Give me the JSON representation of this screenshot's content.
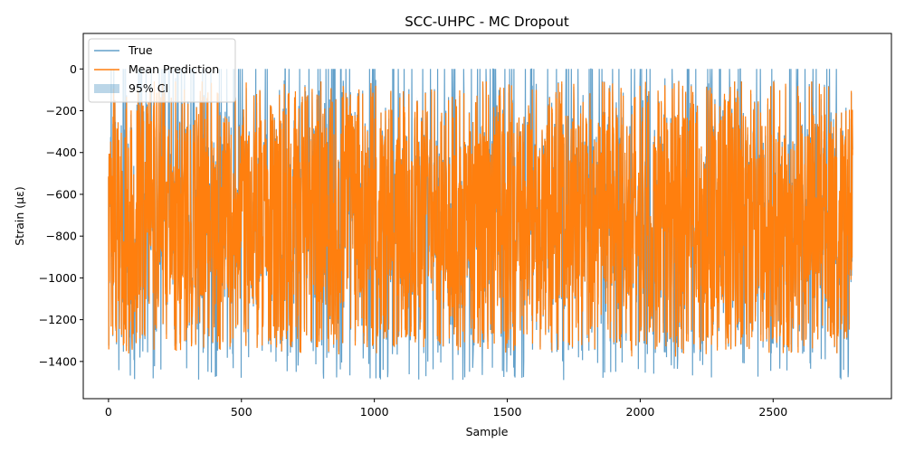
{
  "chart_data": {
    "type": "line",
    "title": "SCC-UHPC - MC Dropout",
    "xlabel": "Sample",
    "ylabel": "Strain (με)",
    "xlim": [
      -95,
      2945
    ],
    "ylim": [
      -1578,
      170
    ],
    "xticks": [
      0,
      500,
      1000,
      1500,
      2000,
      2500
    ],
    "yticks": [
      0,
      -200,
      -400,
      -600,
      -800,
      -1000,
      -1200,
      -1400
    ],
    "xtick_labels": [
      "0",
      "500",
      "1000",
      "1500",
      "2000",
      "2500"
    ],
    "ytick_labels": [
      "0",
      "−200",
      "−400",
      "−600",
      "−800",
      "−1000",
      "−1200",
      "−1400"
    ],
    "n_samples": 2800,
    "legend_position": "upper left",
    "grid": false,
    "series": [
      {
        "name": "True",
        "color": "#1f77b4",
        "style": "line",
        "range": [
          -1490,
          0
        ],
        "description": "dense oscillating signal between about -1490 and 0"
      },
      {
        "name": "Mean Prediction",
        "color": "#ff7f0e",
        "style": "line",
        "range": [
          -1380,
          -60
        ],
        "description": "dense oscillating prediction between about -1380 and -60"
      },
      {
        "name": "95% CI",
        "color": "#1f77b4",
        "style": "band",
        "alpha": 0.3,
        "description": "very narrow shaded interval around the mean prediction"
      }
    ]
  }
}
